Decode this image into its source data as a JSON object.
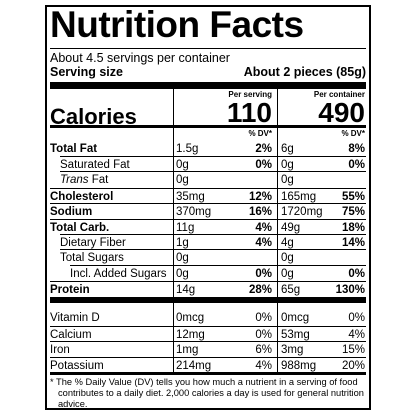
{
  "header": {
    "title": "Nutrition Facts",
    "servings": "About 4.5 servings per container",
    "serving_size_label": "Serving size",
    "serving_size_value": "About 2 pieces (85g)"
  },
  "calories": {
    "label": "Calories",
    "per_serving_label": "Per serving",
    "per_container_label": "Per container",
    "per_serving": "110",
    "per_container": "490",
    "dv_serving": "% DV*",
    "dv_container": "% DV*"
  },
  "rows": [
    {
      "name": "Total Fat",
      "serving_amount": "1.5g",
      "serving_dv": "2%",
      "container_amount": "6g",
      "container_dv": "8%"
    },
    {
      "name": "Saturated Fat",
      "serving_amount": "0g",
      "serving_dv": "0%",
      "container_amount": "0g",
      "container_dv": "0%"
    },
    {
      "name_italic": "Trans",
      "name": "Fat",
      "serving_amount": "0g",
      "container_amount": "0g"
    },
    {
      "name": "Cholesterol",
      "serving_amount": "35mg",
      "serving_dv": "12%",
      "container_amount": "165mg",
      "container_dv": "55%"
    },
    {
      "name": "Sodium",
      "serving_amount": "370mg",
      "serving_dv": "16%",
      "container_amount": "1720mg",
      "container_dv": "75%"
    },
    {
      "name": "Total Carb.",
      "serving_amount": "11g",
      "serving_dv": "4%",
      "container_amount": "49g",
      "container_dv": "18%"
    },
    {
      "name": "Dietary Fiber",
      "serving_amount": "1g",
      "serving_dv": "4%",
      "container_amount": "4g",
      "container_dv": "14%"
    },
    {
      "name": "Total Sugars",
      "serving_amount": "0g",
      "container_amount": "0g"
    },
    {
      "name": "Incl. Added Sugars",
      "serving_amount": "0g",
      "serving_dv": "0%",
      "container_amount": "0g",
      "container_dv": "0%"
    },
    {
      "name": "Protein",
      "serving_amount": "14g",
      "serving_dv": "28%",
      "container_amount": "65g",
      "container_dv": "130%"
    },
    {
      "name": "Vitamin D",
      "serving_amount": "0mcg",
      "serving_dv": "0%",
      "container_amount": "0mcg",
      "container_dv": "0%"
    },
    {
      "name": "Calcium",
      "serving_amount": "12mg",
      "serving_dv": "0%",
      "container_amount": "53mg",
      "container_dv": "4%"
    },
    {
      "name": "Iron",
      "serving_amount": "1mg",
      "serving_dv": "6%",
      "container_amount": "3mg",
      "container_dv": "15%"
    },
    {
      "name": "Potassium",
      "serving_amount": "214mg",
      "serving_dv": "4%",
      "container_amount": "988mg",
      "container_dv": "20%"
    }
  ],
  "footnote": "* The % Daily Value (DV) tells you how much a nutrient in a serving of food contributes to a daily diet. 2,000 calories a day is used for general nutrition advice."
}
